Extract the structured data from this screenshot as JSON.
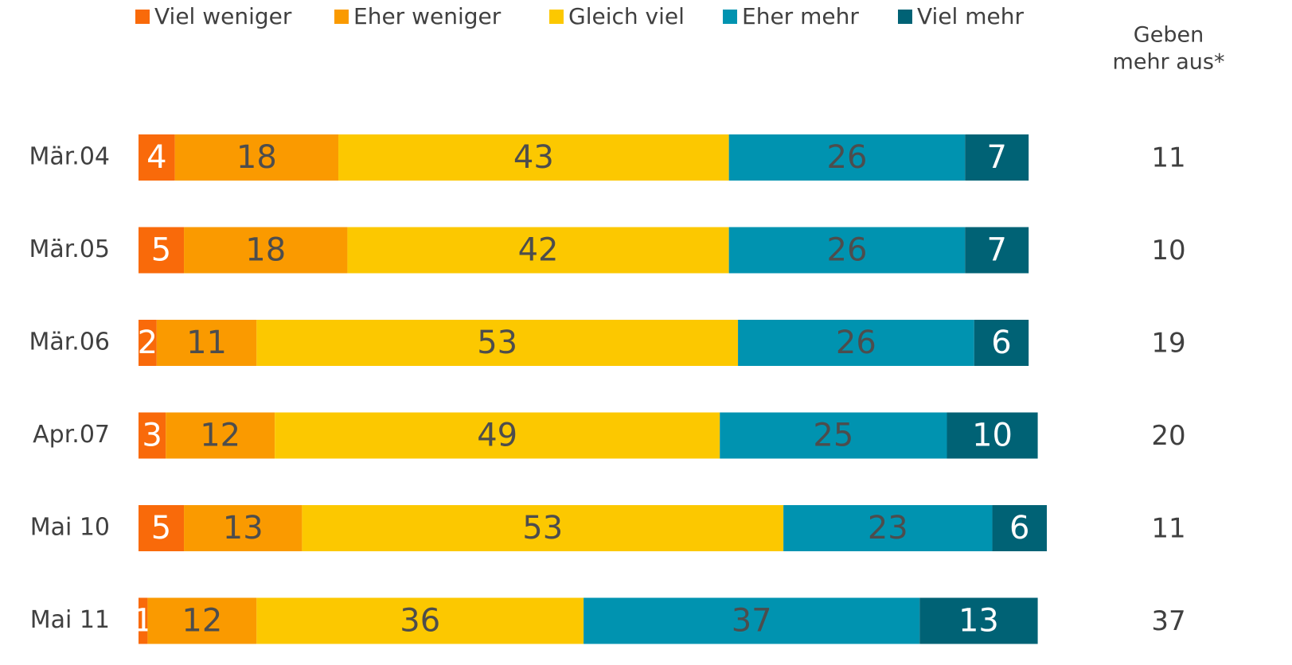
{
  "chart_data": {
    "type": "stacked_barh",
    "categories": [
      "Mär.04",
      "Mär.05",
      "Mär.06",
      "Apr.07",
      "Mai 10",
      "Mai 11"
    ],
    "series": [
      {
        "name": "Viel weniger",
        "color": "#f96a0a",
        "values": [
          4,
          5,
          2,
          3,
          5,
          1
        ]
      },
      {
        "name": "Eher weniger",
        "color": "#fa9a00",
        "values": [
          18,
          18,
          11,
          12,
          13,
          12
        ]
      },
      {
        "name": "Gleich viel",
        "color": "#fcc800",
        "values": [
          43,
          42,
          53,
          49,
          53,
          36
        ]
      },
      {
        "name": "Eher mehr",
        "color": "#0093b0",
        "values": [
          26,
          26,
          26,
          25,
          23,
          37
        ]
      },
      {
        "name": "Viel mehr",
        "color": "#006275",
        "values": [
          7,
          7,
          6,
          10,
          6,
          13
        ]
      }
    ],
    "extra_column": {
      "title_lines": [
        "Geben",
        "mehr aus*"
      ],
      "values": [
        11,
        10,
        19,
        20,
        11,
        37
      ]
    }
  }
}
